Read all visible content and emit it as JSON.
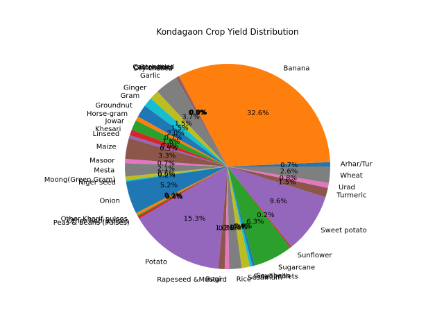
{
  "chart_data": {
    "type": "pie",
    "title": "Kondagaon Crop Yield Distribution",
    "labels": [
      "Arhar/Tur",
      "Banana",
      "Castor seed",
      "Coriander",
      "Cotton(lint)",
      "Dry chillies",
      "Garlic",
      "Ginger",
      "Gram",
      "Groundnut",
      "Horse-gram",
      "Jowar",
      "Khesari",
      "Linseed",
      "Maize",
      "Masoor",
      "Mesta",
      "Moong(Green Gram)",
      "Niger seed",
      "Onion",
      "Other Kharif pulses",
      "Other Rabi pulses",
      "Peas & beans (Pulses)",
      "Potato",
      "Ragi",
      "Rapeseed &Mustard",
      "Rice",
      "Sesamum",
      "Small millets",
      "Soyabean",
      "Sugarcane",
      "Sunflower",
      "Sweet potato",
      "Turmeric",
      "Urad",
      "Wheat"
    ],
    "percent_labels": [
      "0.7%",
      "32.6%",
      "0.0%",
      "0.1%",
      "0.0%",
      "0.3%",
      "3.7%",
      "1.5%",
      "1.5%",
      "2.0%",
      "0.7%",
      "1.6%",
      "0.9%",
      "0.5%",
      "3.3%",
      "0.7%",
      "2.1%",
      "0.6%",
      "0.2%",
      "5.2%",
      "0.4%",
      "0.2%",
      "0.4%",
      "15.3%",
      "1.0%",
      "0.7%",
      "2.0%",
      "1.3%",
      "0.4%",
      "0.4%",
      "6.3%",
      "0.2%",
      "9.6%",
      "1.5%",
      "0.8%",
      "2.6%"
    ],
    "colors": [
      "#1f77b4",
      "#ff7f0e",
      "#2ca02c",
      "#d62728",
      "#9467bd",
      "#8c564b",
      "#7f7f7f",
      "#bcbd22",
      "#17becf",
      "#1f77b4",
      "#ff7f0e",
      "#2ca02c",
      "#d62728",
      "#9467bd",
      "#8c564b",
      "#e377c2",
      "#7f7f7f",
      "#bcbd22",
      "#17becf",
      "#1f77b4",
      "#ff7f0e",
      "#2ca02c",
      "#d62728",
      "#9467bd",
      "#8c564b",
      "#e377c2",
      "#7f7f7f",
      "#bcbd22",
      "#17becf",
      "#1f77b4",
      "#2ca02c",
      "#d62728",
      "#9467bd",
      "#8c564b",
      "#e377c2",
      "#7f7f7f"
    ],
    "start_angle_deg": 0,
    "direction": "counterclockwise",
    "legend": "none"
  }
}
